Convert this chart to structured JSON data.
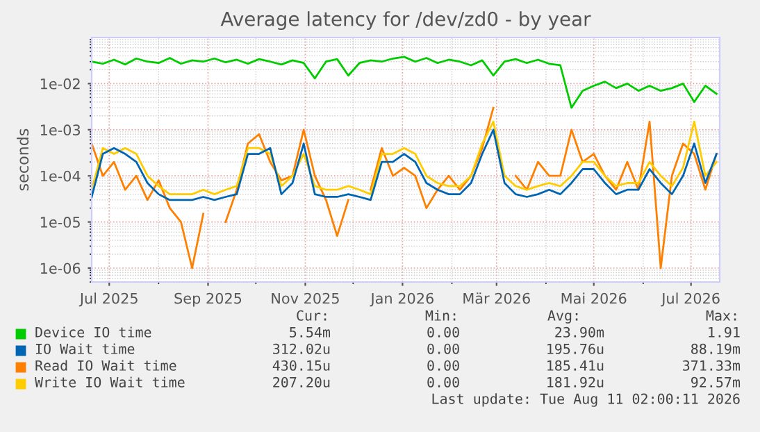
{
  "chart_data": {
    "type": "line",
    "title": "Average latency for /dev/zd0 - by year",
    "ylabel": "seconds",
    "x": [
      "2025-06-20",
      "2025-06-27",
      "2025-07-04",
      "2025-07-11",
      "2025-07-18",
      "2025-07-25",
      "2025-08-01",
      "2025-08-08",
      "2025-08-15",
      "2025-08-22",
      "2025-08-29",
      "2025-09-05",
      "2025-09-12",
      "2025-09-19",
      "2025-09-26",
      "2025-10-03",
      "2025-10-10",
      "2025-10-17",
      "2025-10-24",
      "2025-10-31",
      "2025-11-07",
      "2025-11-14",
      "2025-11-21",
      "2025-11-28",
      "2025-12-05",
      "2025-12-12",
      "2025-12-19",
      "2025-12-26",
      "2026-01-02",
      "2026-01-09",
      "2026-01-16",
      "2026-01-23",
      "2026-01-30",
      "2026-02-06",
      "2026-02-13",
      "2026-02-20",
      "2026-02-27",
      "2026-03-06",
      "2026-03-13",
      "2026-03-20",
      "2026-03-27",
      "2026-04-03",
      "2026-04-10",
      "2026-04-17",
      "2026-04-24",
      "2026-05-01",
      "2026-05-08",
      "2026-05-15",
      "2026-05-22",
      "2026-05-29",
      "2026-06-05",
      "2026-06-12",
      "2026-06-19",
      "2026-06-26",
      "2026-07-03",
      "2026-07-10",
      "2026-07-17"
    ],
    "series": [
      {
        "name": "Device IO time",
        "color": "#00cc00",
        "values": [
          0.03,
          0.027,
          0.033,
          0.026,
          0.035,
          0.03,
          0.028,
          0.036,
          0.027,
          0.032,
          0.03,
          0.035,
          0.029,
          0.033,
          0.027,
          0.034,
          0.03,
          0.026,
          0.032,
          0.028,
          0.013,
          0.03,
          0.034,
          0.015,
          0.028,
          0.032,
          0.03,
          0.035,
          0.038,
          0.03,
          0.036,
          0.028,
          0.033,
          0.03,
          0.025,
          0.032,
          0.015,
          0.03,
          0.034,
          0.028,
          0.033,
          0.027,
          0.025,
          0.003,
          0.007,
          0.009,
          0.011,
          0.008,
          0.01,
          0.007,
          0.009,
          0.007,
          0.008,
          0.01,
          0.004,
          0.009,
          0.006
        ]
      },
      {
        "name": "IO Wait time",
        "color": "#0066b3",
        "values": [
          3.5e-05,
          0.0003,
          0.0004,
          0.0003,
          0.0002,
          7e-05,
          4e-05,
          3e-05,
          3e-05,
          3e-05,
          3.5e-05,
          3e-05,
          3.5e-05,
          4e-05,
          0.0003,
          0.0003,
          0.0004,
          4e-05,
          7e-05,
          0.0005,
          4e-05,
          3.5e-05,
          3.5e-05,
          4e-05,
          3.5e-05,
          3e-05,
          0.0002,
          0.0002,
          0.0003,
          0.0002,
          7e-05,
          5e-05,
          4e-05,
          4e-05,
          7e-05,
          0.0003,
          0.001,
          7e-05,
          4e-05,
          3.5e-05,
          4e-05,
          5e-05,
          4e-05,
          7e-05,
          0.00014,
          0.00014,
          7e-05,
          4e-05,
          5e-05,
          5e-05,
          0.00014,
          7e-05,
          4e-05,
          0.0001,
          0.0005,
          7e-05,
          0.0003
        ]
      },
      {
        "name": "Read IO Wait time",
        "color": "#ff8000",
        "values": [
          0.0005,
          0.0001,
          0.0002,
          5e-05,
          0.0001,
          3e-05,
          8e-05,
          2e-05,
          1e-05,
          1e-06,
          1.5e-05,
          null,
          1e-05,
          5e-05,
          0.0005,
          0.0008,
          0.0002,
          8e-05,
          0.0001,
          0.001,
          0.0001,
          3e-05,
          5e-06,
          3e-05,
          null,
          5e-05,
          0.0004,
          0.0001,
          0.00015,
          0.0001,
          2e-05,
          5e-05,
          0.0001,
          5e-05,
          0.0001,
          0.0004,
          0.003,
          null,
          0.0001,
          5e-05,
          0.0002,
          0.0001,
          0.0001,
          0.001,
          0.0002,
          0.0003,
          0.0001,
          5e-05,
          0.0002,
          5e-05,
          0.0015,
          1e-06,
          0.0001,
          0.0005,
          0.0003,
          5e-05,
          0.0003
        ]
      },
      {
        "name": "Write IO Wait time",
        "color": "#ffcc00",
        "values": [
          5e-05,
          0.0004,
          0.0003,
          0.0004,
          0.0003,
          0.0001,
          6e-05,
          4e-05,
          4e-05,
          4e-05,
          5e-05,
          4e-05,
          5e-05,
          6e-05,
          0.0004,
          0.0004,
          0.0003,
          6e-05,
          0.0001,
          0.0003,
          6e-05,
          5e-05,
          5e-05,
          6e-05,
          5e-05,
          4e-05,
          0.0003,
          0.0003,
          0.0004,
          0.0003,
          0.0001,
          7e-05,
          6e-05,
          6e-05,
          0.0001,
          0.0005,
          0.0015,
          0.0001,
          6e-05,
          5e-05,
          6e-05,
          7e-05,
          6e-05,
          0.0001,
          0.0002,
          0.0002,
          0.0001,
          6e-05,
          7e-05,
          7e-05,
          0.0002,
          0.0001,
          6e-05,
          0.00015,
          0.0015,
          0.0001,
          0.0002
        ]
      }
    ],
    "log": "y",
    "ylim": [
      5e-07,
      0.1
    ],
    "yticks": [
      {
        "value": 1e-06,
        "label": "1e-06"
      },
      {
        "value": 1e-05,
        "label": "1e-05"
      },
      {
        "value": 0.0001,
        "label": "1e-04"
      },
      {
        "value": 0.001,
        "label": "1e-03"
      },
      {
        "value": 0.01,
        "label": "1e-02"
      }
    ],
    "xlim": [
      "2025-06-20",
      "2026-07-19"
    ],
    "xticks": [
      {
        "value": "2025-07-01",
        "label": "Jul 2025"
      },
      {
        "value": "2025-09-01",
        "label": "Sep 2025"
      },
      {
        "value": "2025-11-01",
        "label": "Nov 2025"
      },
      {
        "value": "2026-01-01",
        "label": "Jan 2026"
      },
      {
        "value": "2026-03-01",
        "label": "Mär 2026"
      },
      {
        "value": "2026-05-01",
        "label": "Mai 2026"
      },
      {
        "value": "2026-07-01",
        "label": "Jul 2026"
      }
    ],
    "grid": true,
    "legend": "bottom",
    "marker": "none",
    "line_style": "solid",
    "annotations": [
      "Cur:",
      "Min:",
      "Avg:",
      "Max:",
      "5.54m",
      "0.00",
      "23.90m",
      "1.91",
      "312.02u",
      "0.00",
      "195.76u",
      "88.19m",
      "430.15u",
      "0.00",
      "185.41u",
      "371.33m",
      "207.20u",
      "0.00",
      "181.92u",
      "92.57m",
      "Last update: Tue Aug 11 02:00:11 2026"
    ]
  }
}
